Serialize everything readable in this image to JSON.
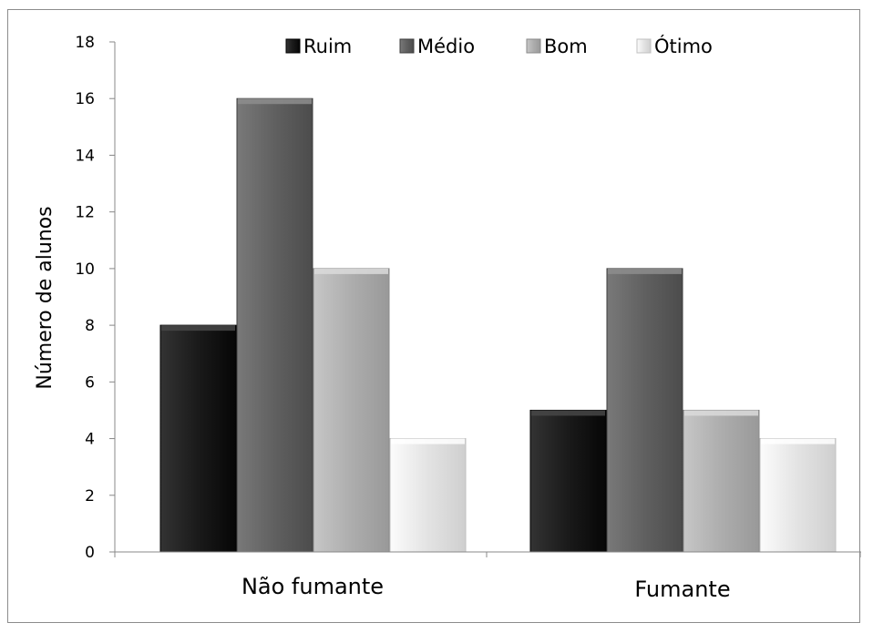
{
  "chart_data": {
    "type": "bar",
    "categories": [
      "Não fumante",
      "Fumante"
    ],
    "series": [
      {
        "name": "Ruim",
        "values": [
          8,
          5
        ],
        "color": "#1a1a1a"
      },
      {
        "name": "Médio",
        "values": [
          16,
          10
        ],
        "color": "#606060"
      },
      {
        "name": "Bom",
        "values": [
          10,
          5
        ],
        "color": "#adadad"
      },
      {
        "name": "Ótimo",
        "values": [
          4,
          4
        ],
        "color": "#e3e3e3"
      }
    ],
    "title": "",
    "xlabel": "",
    "ylabel": "Número de alunos",
    "ylim": [
      0,
      18
    ],
    "yticks": [
      0,
      2,
      4,
      6,
      8,
      10,
      12,
      14,
      16,
      18
    ],
    "grid": false,
    "legend_position": "top"
  }
}
